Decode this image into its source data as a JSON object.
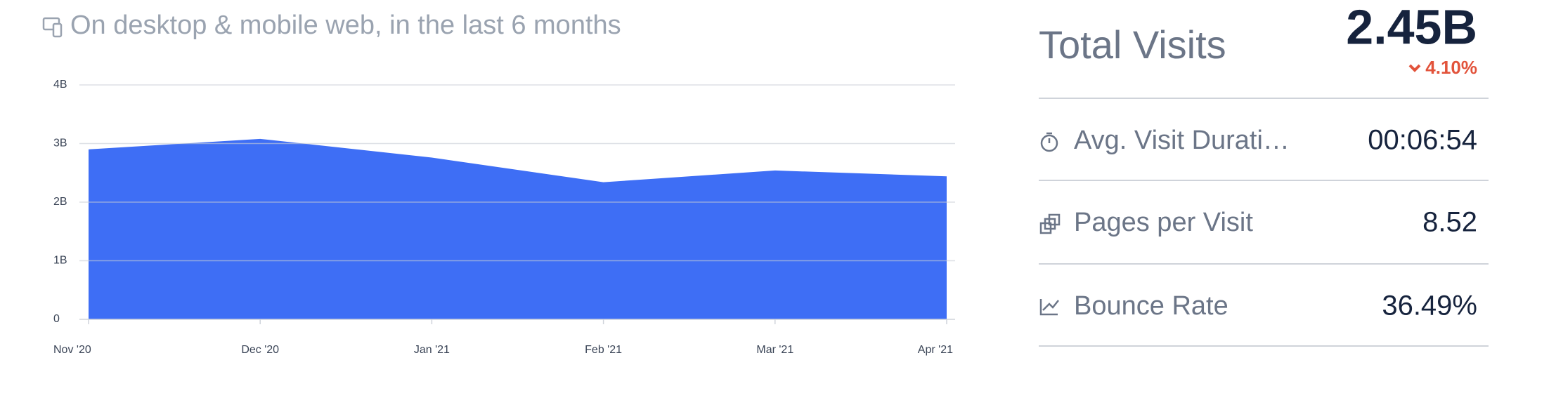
{
  "header": {
    "subtitle": "On desktop & mobile web, in the last 6 months"
  },
  "chart_data": {
    "type": "area",
    "categories": [
      "Nov '20",
      "Dec '20",
      "Jan '21",
      "Feb '21",
      "Mar '21",
      "Apr '21"
    ],
    "values": [
      2.9,
      3.08,
      2.76,
      2.34,
      2.54,
      2.44
    ],
    "color": "#3e6ef5",
    "ylim": [
      0,
      4
    ],
    "yticks": [
      0,
      {
        "value": 1,
        "label": "1B"
      },
      {
        "value": 2,
        "label": "2B"
      },
      {
        "value": 3,
        "label": "3B"
      },
      {
        "value": 4,
        "label": "4B"
      }
    ],
    "grid": true
  },
  "stats": {
    "total": {
      "label": "Total Visits",
      "value": "2.45B",
      "change": "4.10%"
    },
    "metrics": [
      {
        "label": "Avg. Visit Durati…",
        "value": "00:06:54"
      },
      {
        "label": "Pages per Visit",
        "value": "8.52"
      },
      {
        "label": "Bounce Rate",
        "value": "36.49%"
      }
    ]
  }
}
